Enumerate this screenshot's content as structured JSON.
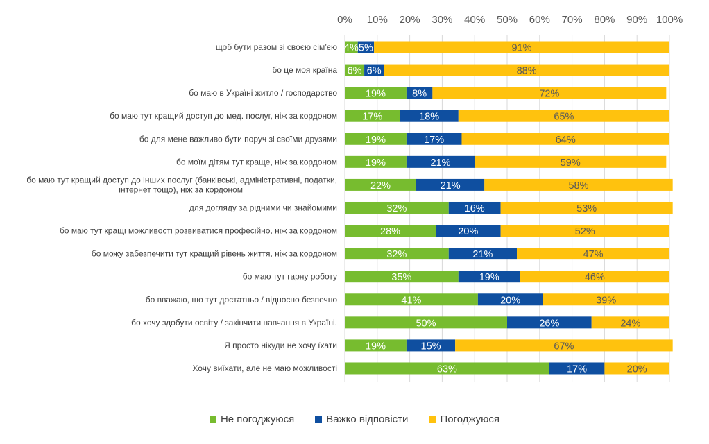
{
  "chart_data": {
    "type": "bar",
    "orientation": "horizontal",
    "stacked": true,
    "xlim": [
      0,
      100
    ],
    "x_ticks": [
      "0%",
      "10%",
      "20%",
      "30%",
      "40%",
      "50%",
      "60%",
      "70%",
      "80%",
      "90%",
      "100%"
    ],
    "x_axis_position": "top",
    "categories": [
      [
        "щоб бути разом зі своєю сім’єю"
      ],
      [
        "бо це моя країна"
      ],
      [
        "бо маю в Україні житло / господарство"
      ],
      [
        "бо маю тут кращий доступ до мед. послуг, ніж за кордоном"
      ],
      [
        "бо для мене важливо бути поруч зі своїми друзями"
      ],
      [
        "бо моїм дітям тут краще, ніж за кордоном"
      ],
      [
        "бо маю тут кращий доступ до інших послуг (банківські, адміністративні,  податки,",
        "інтернет тощо), ніж за кордоном"
      ],
      [
        "для догляду за рідними чи знайомими"
      ],
      [
        "бо маю тут кращі можливості розвиватися професійно, ніж за кордоном"
      ],
      [
        "бо можу забезпечити тут кращий рівень життя, ніж за кордоном"
      ],
      [
        "бо маю тут гарну роботу"
      ],
      [
        "бо вважаю, що тут достатньо / відносно безпечно"
      ],
      [
        "бо хочу здобути освіту / закінчити навчання в Україні."
      ],
      [
        "Я просто нікуди не хочу їхати"
      ],
      [
        "Хочу виїхати, але не маю можливості"
      ]
    ],
    "series": [
      {
        "name": "Не погоджуюся",
        "color": "#77BC2F",
        "label_color": "#ffffff",
        "values": [
          4,
          6,
          19,
          17,
          19,
          19,
          22,
          32,
          28,
          32,
          35,
          41,
          50,
          19,
          63
        ]
      },
      {
        "name": "Важко відповісти",
        "color": "#0F4FA0",
        "label_color": "#ffffff",
        "values": [
          5,
          6,
          8,
          18,
          17,
          21,
          21,
          16,
          20,
          21,
          19,
          20,
          26,
          15,
          17
        ]
      },
      {
        "name": "Погоджуюся",
        "color": "#FFC20E",
        "label_color": "#595959",
        "values": [
          91,
          88,
          72,
          65,
          64,
          59,
          58,
          53,
          52,
          47,
          46,
          39,
          24,
          67,
          20
        ]
      }
    ],
    "value_suffix": "%",
    "legend_position": "bottom",
    "grid": true
  }
}
